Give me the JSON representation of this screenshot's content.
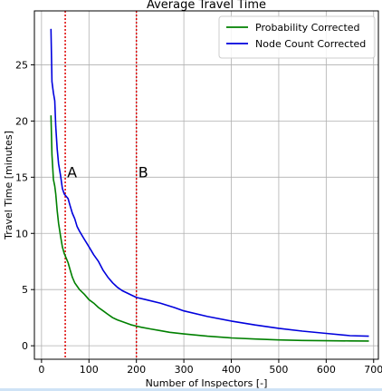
{
  "chart_data": {
    "type": "line",
    "title": "Average Travel Time",
    "xlabel": "Number of Inspectors [-]",
    "ylabel": "Travel Time [minutes]",
    "xlim": [
      -15,
      710
    ],
    "ylim": [
      -1.2,
      29.8
    ],
    "xticks": [
      0,
      100,
      200,
      300,
      400,
      500,
      600,
      700
    ],
    "yticks": [
      0,
      5,
      10,
      15,
      20,
      25
    ],
    "grid": true,
    "legend_position": "top-right",
    "series": [
      {
        "name": "Probability Corrected",
        "color": "#008000",
        "points": [
          [
            20,
            20.5
          ],
          [
            22,
            17
          ],
          [
            25,
            14.8
          ],
          [
            28,
            14.2
          ],
          [
            30,
            13.5
          ],
          [
            33,
            12
          ],
          [
            36,
            10.9
          ],
          [
            40,
            9.8
          ],
          [
            44,
            8.8
          ],
          [
            48,
            8.2
          ],
          [
            52,
            7.8
          ],
          [
            56,
            7.4
          ],
          [
            60,
            6.8
          ],
          [
            65,
            6.1
          ],
          [
            70,
            5.6
          ],
          [
            75,
            5.3
          ],
          [
            80,
            5.0
          ],
          [
            90,
            4.6
          ],
          [
            100,
            4.1
          ],
          [
            110,
            3.8
          ],
          [
            120,
            3.4
          ],
          [
            130,
            3.1
          ],
          [
            140,
            2.8
          ],
          [
            150,
            2.5
          ],
          [
            160,
            2.3
          ],
          [
            170,
            2.15
          ],
          [
            180,
            2.0
          ],
          [
            190,
            1.85
          ],
          [
            200,
            1.75
          ],
          [
            210,
            1.65
          ],
          [
            230,
            1.5
          ],
          [
            250,
            1.35
          ],
          [
            270,
            1.2
          ],
          [
            300,
            1.05
          ],
          [
            350,
            0.85
          ],
          [
            400,
            0.7
          ],
          [
            450,
            0.6
          ],
          [
            500,
            0.52
          ],
          [
            550,
            0.47
          ],
          [
            600,
            0.45
          ],
          [
            650,
            0.43
          ],
          [
            690,
            0.42
          ]
        ]
      },
      {
        "name": "Node Count Corrected",
        "color": "#0000dd",
        "points": [
          [
            20,
            28.2
          ],
          [
            22,
            23.5
          ],
          [
            25,
            22.5
          ],
          [
            28,
            21.8
          ],
          [
            30,
            19.5
          ],
          [
            33,
            17.5
          ],
          [
            36,
            16.2
          ],
          [
            40,
            15.2
          ],
          [
            44,
            14
          ],
          [
            48,
            13.5
          ],
          [
            52,
            13.3
          ],
          [
            56,
            13.1
          ],
          [
            60,
            12.5
          ],
          [
            65,
            11.8
          ],
          [
            70,
            11.3
          ],
          [
            75,
            10.6
          ],
          [
            80,
            10.2
          ],
          [
            90,
            9.5
          ],
          [
            100,
            8.8
          ],
          [
            110,
            8.1
          ],
          [
            120,
            7.5
          ],
          [
            130,
            6.7
          ],
          [
            140,
            6.1
          ],
          [
            150,
            5.6
          ],
          [
            160,
            5.2
          ],
          [
            170,
            4.9
          ],
          [
            180,
            4.7
          ],
          [
            190,
            4.5
          ],
          [
            200,
            4.3
          ],
          [
            220,
            4.1
          ],
          [
            250,
            3.8
          ],
          [
            280,
            3.4
          ],
          [
            300,
            3.1
          ],
          [
            350,
            2.6
          ],
          [
            400,
            2.2
          ],
          [
            450,
            1.85
          ],
          [
            500,
            1.55
          ],
          [
            550,
            1.3
          ],
          [
            600,
            1.1
          ],
          [
            650,
            0.9
          ],
          [
            690,
            0.85
          ]
        ]
      }
    ],
    "reference_lines": [
      {
        "x": 50,
        "label": "A",
        "color": "#dd0000"
      },
      {
        "x": 200,
        "label": "B",
        "color": "#dd0000"
      }
    ]
  }
}
